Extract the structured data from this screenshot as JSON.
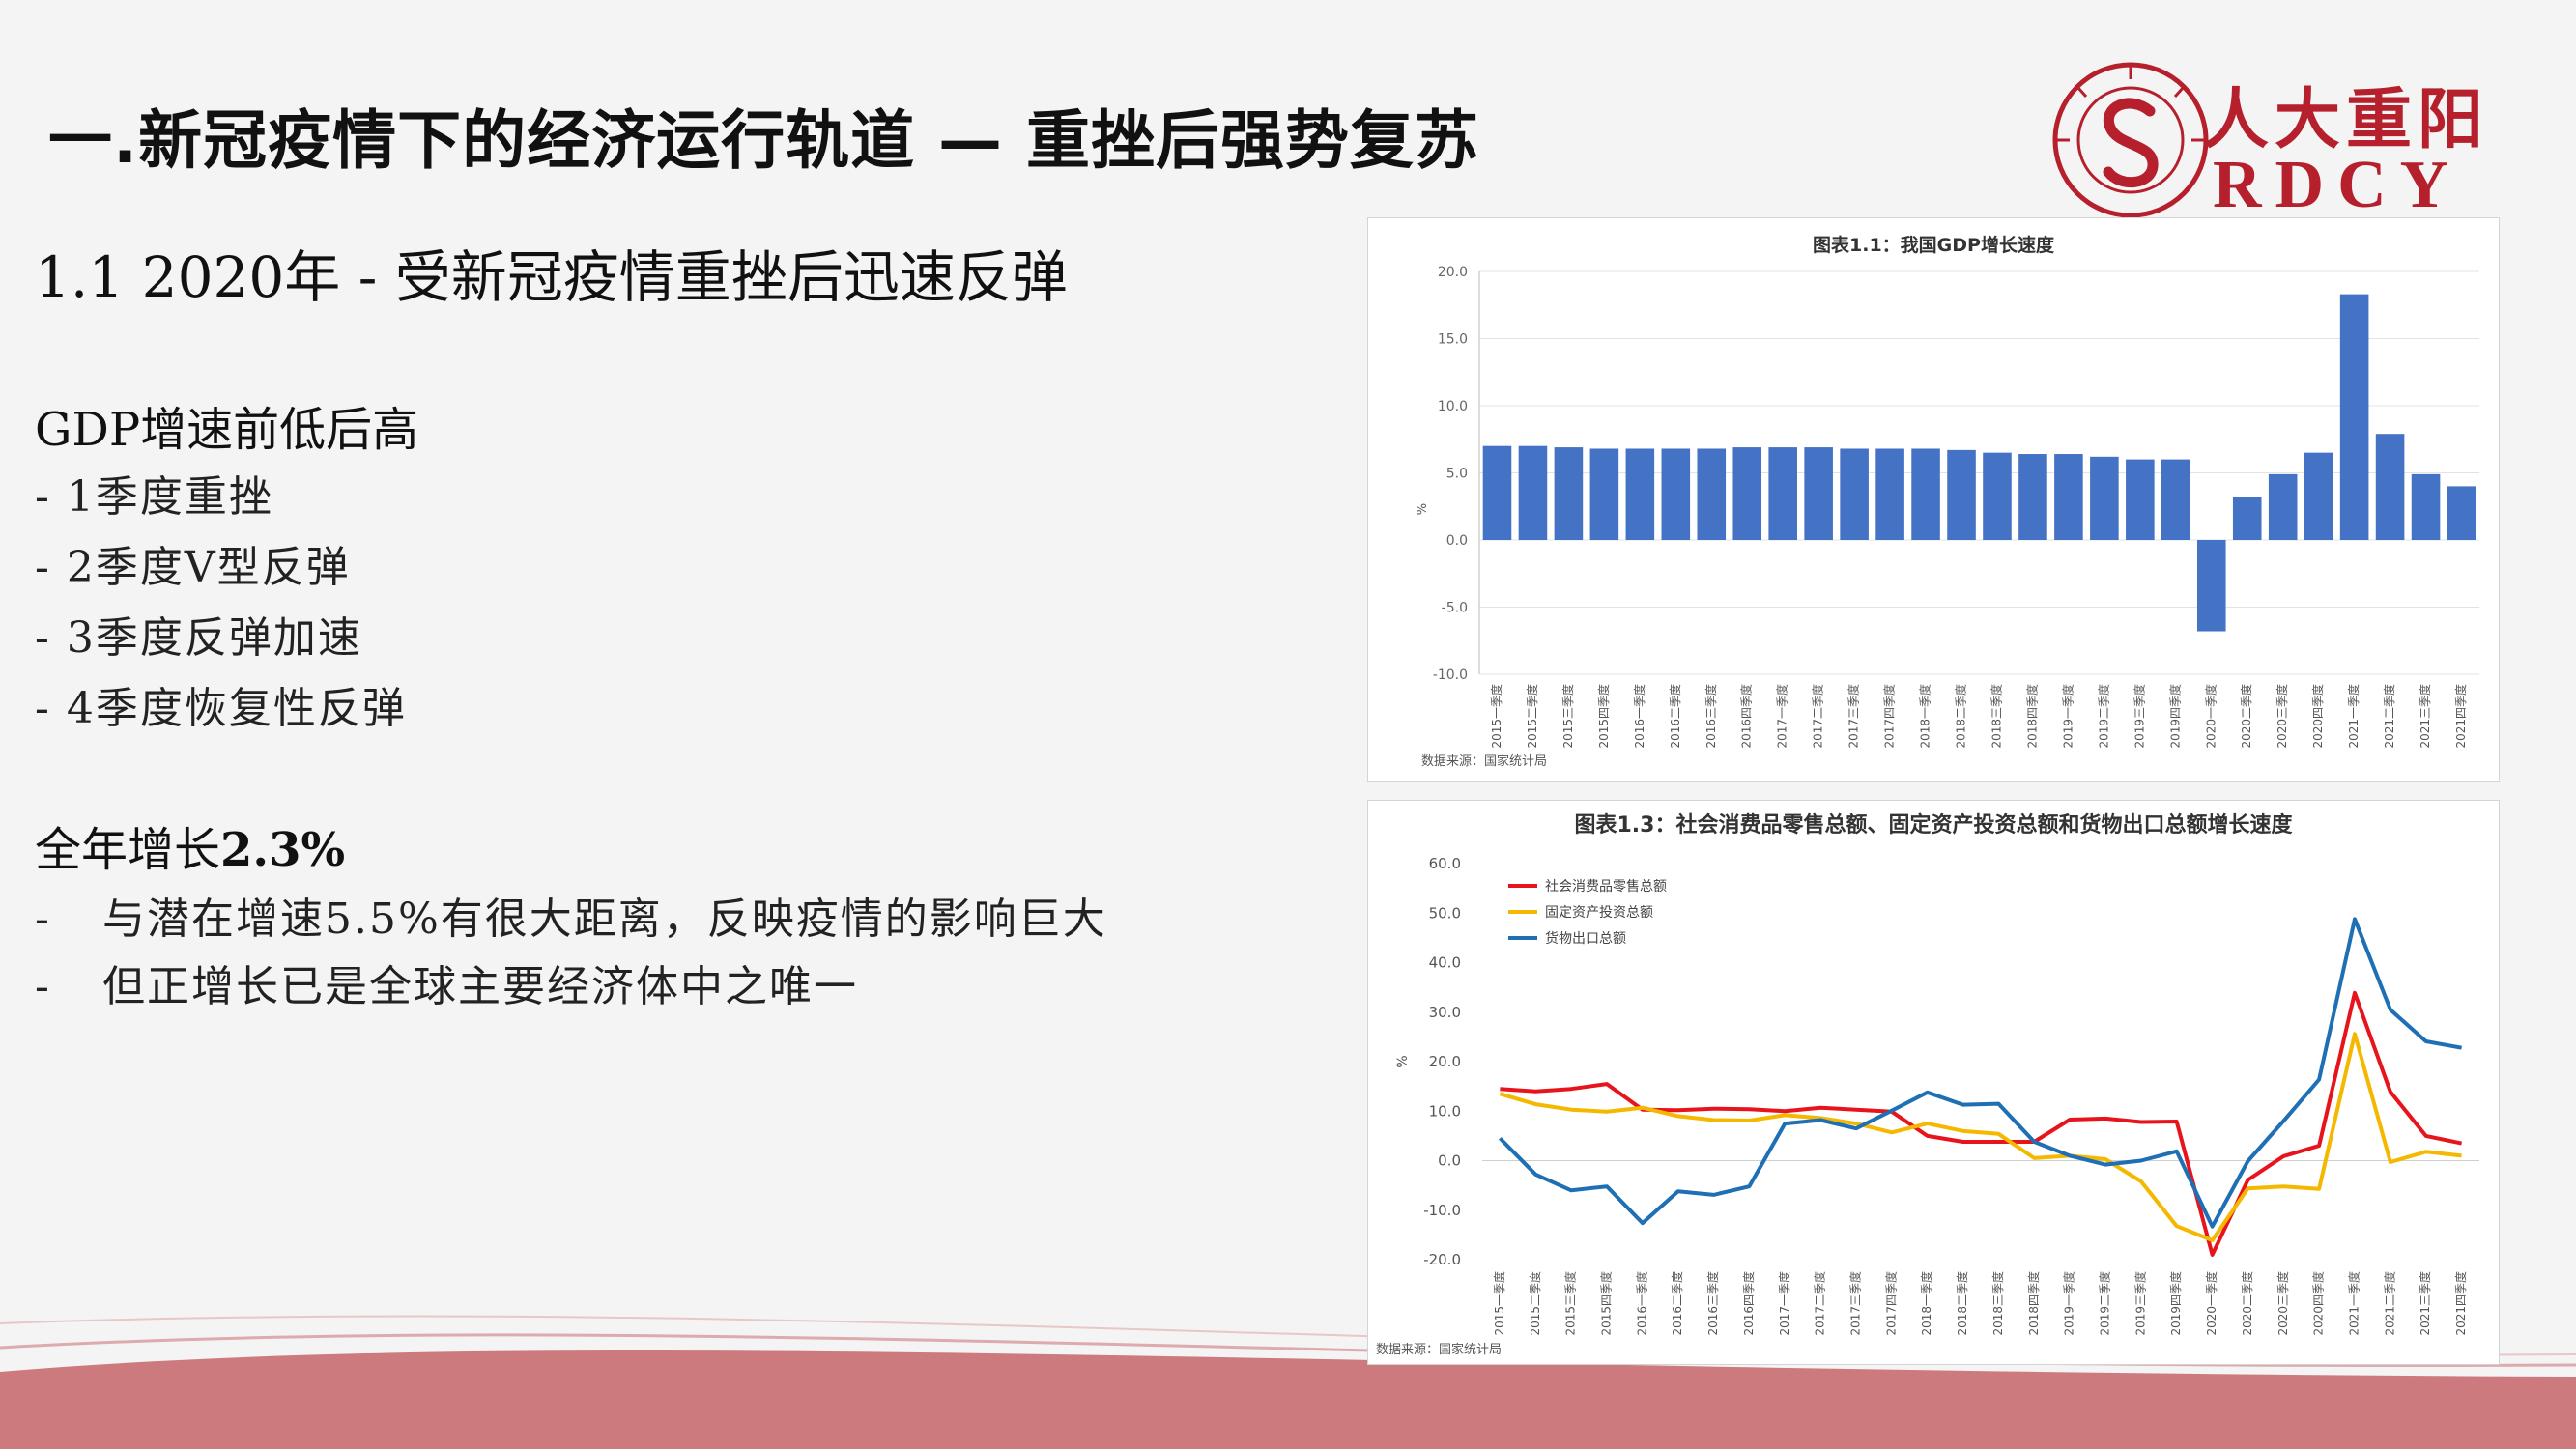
{
  "header": {
    "title": "一.新冠疫情下的经济运行轨道 — 重挫后强势复苏"
  },
  "logo": {
    "name_cn": "人大重阳",
    "name_en": "RDCY",
    "brand_color": "#b5202c"
  },
  "content": {
    "subtitle": "1.1 2020年 - 受新冠疫情重挫后迅速反弹",
    "section1": {
      "heading": "GDP增速前低后高",
      "items": [
        "- 1季度重挫",
        "- 2季度V型反弹",
        "- 3季度反弹加速",
        "- 4季度恢复性反弹"
      ]
    },
    "section2": {
      "heading_prefix": "全年增长",
      "heading_value": "2.3%",
      "items": [
        {
          "dash": "-",
          "text": "与潜在增速5.5%有很大距离，反映疫情的影响巨大"
        },
        {
          "dash": "-",
          "text": "但正增长已是全球主要经济体中之唯一"
        }
      ]
    }
  },
  "chart_data": [
    {
      "type": "bar",
      "title": "图表1.1：我国GDP增长速度",
      "ylabel": "%",
      "source": "数据来源：国家统计局",
      "ylim": [
        -10,
        20
      ],
      "yticks": [
        "20.0",
        "15.0",
        "10.0",
        "5.0",
        "0.0",
        "-5.0",
        "-10.0"
      ],
      "grid": true,
      "bar_color": "#4472c4",
      "categories": [
        "2015一季度",
        "2015二季度",
        "2015三季度",
        "2015四季度",
        "2016一季度",
        "2016二季度",
        "2016三季度",
        "2016四季度",
        "2017一季度",
        "2017二季度",
        "2017三季度",
        "2017四季度",
        "2018一季度",
        "2018二季度",
        "2018三季度",
        "2018四季度",
        "2019一季度",
        "2019二季度",
        "2019三季度",
        "2019四季度",
        "2020一季度",
        "2020二季度",
        "2020三季度",
        "2020四季度",
        "2021一季度",
        "2021二季度",
        "2021三季度",
        "2021四季度"
      ],
      "values": [
        7.0,
        7.0,
        6.9,
        6.8,
        6.8,
        6.8,
        6.8,
        6.9,
        6.9,
        6.9,
        6.8,
        6.8,
        6.8,
        6.7,
        6.5,
        6.4,
        6.4,
        6.2,
        6.0,
        6.0,
        -6.8,
        3.2,
        4.9,
        6.5,
        18.3,
        7.9,
        4.9,
        4.0
      ]
    },
    {
      "type": "line",
      "title": "图表1.3：社会消费品零售总额、固定资产投资总额和货物出口总额增长速度",
      "ylabel": "%",
      "source": "数据来源：国家统计局",
      "ylim": [
        -20,
        60
      ],
      "yticks": [
        "60.0",
        "50.0",
        "40.0",
        "30.0",
        "20.0",
        "10.0",
        "0.0",
        "-10.0",
        "-20.0"
      ],
      "legend_position": "top-left",
      "grid": false,
      "categories": [
        "2015一季度",
        "2015二季度",
        "2015三季度",
        "2015四季度",
        "2016一季度",
        "2016二季度",
        "2016三季度",
        "2016四季度",
        "2017一季度",
        "2017二季度",
        "2017三季度",
        "2017四季度",
        "2018一季度",
        "2018二季度",
        "2018三季度",
        "2018四季度",
        "2019一季度",
        "2019二季度",
        "2019三季度",
        "2019四季度",
        "2020一季度",
        "2020二季度",
        "2020三季度",
        "2020四季度",
        "2021一季度",
        "2021二季度",
        "2021三季度",
        "2021四季度"
      ],
      "series": [
        {
          "name": "社会消费品零售总额",
          "color": "#e8141c",
          "values": [
            14.5,
            14.0,
            14.5,
            15.5,
            10.3,
            10.2,
            10.5,
            10.4,
            10.0,
            10.7,
            10.3,
            9.9,
            5.0,
            3.8,
            3.8,
            3.8,
            8.3,
            8.5,
            7.8,
            7.9,
            -19.0,
            -3.9,
            0.9,
            3.0,
            33.9,
            13.9,
            5.0,
            3.5
          ]
        },
        {
          "name": "固定资产投资总额",
          "color": "#f5b800",
          "values": [
            13.5,
            11.4,
            10.3,
            9.9,
            10.7,
            9.0,
            8.2,
            8.1,
            9.2,
            8.6,
            7.5,
            5.7,
            7.5,
            6.0,
            5.4,
            0.5,
            1.0,
            0.3,
            -4.2,
            -13.2,
            -16.1,
            -5.6,
            -5.2,
            -5.7,
            25.6,
            -0.3,
            1.8,
            1.0
          ]
        },
        {
          "name": "货物出口总额",
          "color": "#1f6fb5",
          "values": [
            4.5,
            -2.8,
            -6.0,
            -5.2,
            -12.6,
            -6.2,
            -6.9,
            -5.2,
            7.5,
            8.2,
            6.5,
            10.1,
            13.8,
            11.3,
            11.5,
            3.8,
            1.0,
            -0.8,
            0.0,
            1.9,
            -13.3,
            -0.1,
            8.0,
            16.4,
            48.8,
            30.5,
            24.1,
            22.8
          ]
        }
      ]
    }
  ]
}
